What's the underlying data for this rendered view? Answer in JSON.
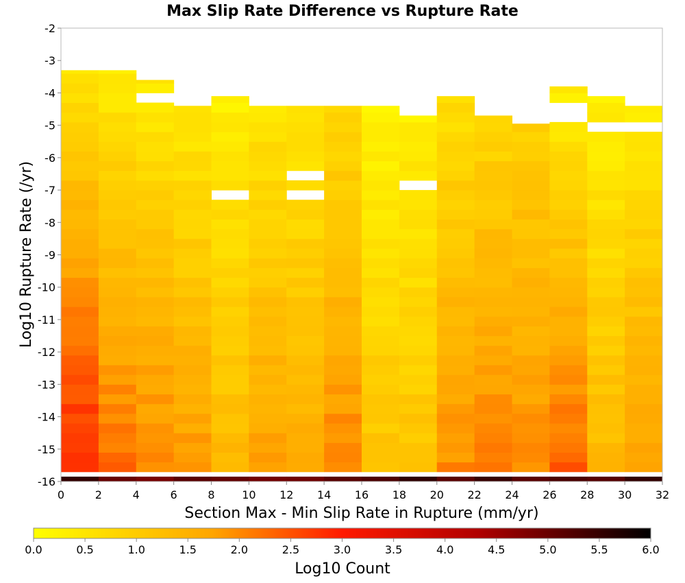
{
  "chart_data": {
    "type": "heatmap",
    "title": "Max Slip Rate Difference vs Rupture Rate",
    "xlabel": "Section Max - Min Slip Rate in Rupture (mm/yr)",
    "ylabel": "Log10 Rupture Rate (/yr)",
    "xlim": [
      0,
      32
    ],
    "ylim": [
      -16,
      -2
    ],
    "x_ticks": [
      "0",
      "2",
      "4",
      "6",
      "8",
      "10",
      "12",
      "14",
      "16",
      "18",
      "20",
      "22",
      "24",
      "26",
      "28",
      "30",
      "32"
    ],
    "y_ticks": [
      "-2",
      "-3",
      "-4",
      "-5",
      "-6",
      "-7",
      "-8",
      "-9",
      "-10",
      "-11",
      "-12",
      "-13",
      "-14",
      "-15",
      "-16"
    ],
    "x_bin_width": 2,
    "y_bin_height": 0.3,
    "grid": false,
    "colorbar": {
      "label": "Log10 Count",
      "range": [
        0,
        6
      ],
      "ticks": [
        "0.0",
        "0.5",
        "1.0",
        "1.5",
        "2.0",
        "2.5",
        "3.0",
        "3.5",
        "4.0",
        "4.5",
        "5.0",
        "5.5",
        "6.0"
      ],
      "colors": [
        "#ffff00",
        "#ffa500",
        "#ff1a00",
        "#b00000",
        "#000000"
      ],
      "placement": "bottom"
    },
    "columns": [
      {
        "x_start": 0,
        "rupture_rate_range": [
          -16,
          -3.3
        ],
        "log10_count_bottom": 3.0,
        "log10_count_top": 0.5
      },
      {
        "x_start": 2,
        "rupture_rate_range": [
          -16,
          -3.3
        ],
        "log10_count_bottom": 2.3,
        "log10_count_top": 0.4
      },
      {
        "x_start": 4,
        "rupture_rate_range": [
          -16,
          -3.6
        ],
        "log10_count_bottom": 2.1,
        "log10_count_top": 0.4
      },
      {
        "x_start": 6,
        "rupture_rate_range": [
          -16,
          -4.4
        ],
        "log10_count_bottom": 1.9,
        "log10_count_top": 0.4
      },
      {
        "x_start": 8,
        "rupture_rate_range": [
          -16,
          -4.1
        ],
        "log10_count_bottom": 1.4,
        "log10_count_top": 0.3
      },
      {
        "x_start": 10,
        "rupture_rate_range": [
          -16,
          -4.4
        ],
        "log10_count_bottom": 1.8,
        "log10_count_top": 0.5
      },
      {
        "x_start": 12,
        "rupture_rate_range": [
          -16,
          -4.4
        ],
        "log10_count_bottom": 1.6,
        "log10_count_top": 0.5
      },
      {
        "x_start": 14,
        "rupture_rate_range": [
          -16,
          -4.4
        ],
        "log10_count_bottom": 2.1,
        "log10_count_top": 0.7
      },
      {
        "x_start": 16,
        "rupture_rate_range": [
          -16,
          -4.4
        ],
        "log10_count_bottom": 1.2,
        "log10_count_top": 0.2
      },
      {
        "x_start": 18,
        "rupture_rate_range": [
          -16,
          -4.7
        ],
        "log10_count_bottom": 1.2,
        "log10_count_top": 0.3
      },
      {
        "x_start": 20,
        "rupture_rate_range": [
          -16,
          -4.1
        ],
        "log10_count_bottom": 2.0,
        "log10_count_top": 0.6
      },
      {
        "x_start": 22,
        "rupture_rate_range": [
          -16,
          -4.7
        ],
        "log10_count_bottom": 2.1,
        "log10_count_top": 0.8
      },
      {
        "x_start": 24,
        "rupture_rate_range": [
          -16,
          -4.95
        ],
        "log10_count_bottom": 2.0,
        "log10_count_top": 0.9
      },
      {
        "x_start": 26,
        "rupture_rate_range": [
          -16,
          -3.8
        ],
        "log10_count_bottom": 2.4,
        "log10_count_top": 0.3
      },
      {
        "x_start": 28,
        "rupture_rate_range": [
          -16,
          -4.1
        ],
        "log10_count_bottom": 1.4,
        "log10_count_top": 0.3
      },
      {
        "x_start": 30,
        "rupture_rate_range": [
          -16,
          -4.4
        ],
        "log10_count_bottom": 1.8,
        "log10_count_top": 0.4
      }
    ],
    "bottom_row": {
      "rupture_rate": -16,
      "log10_count_range": [
        4.8,
        5.6
      ]
    },
    "empty_cells": [
      {
        "x_start": 4,
        "y": -4.0
      },
      {
        "x_start": 8,
        "y": -7.0
      },
      {
        "x_start": 12,
        "y": -6.5
      },
      {
        "x_start": 12,
        "y": -7.0
      },
      {
        "x_start": 18,
        "y": -6.8
      },
      {
        "x_start": 26,
        "y": -4.3
      },
      {
        "x_start": 26,
        "y": -4.6
      },
      {
        "x_start": 28,
        "y": -4.9
      },
      {
        "x_start": 30,
        "y": -4.9
      }
    ]
  }
}
